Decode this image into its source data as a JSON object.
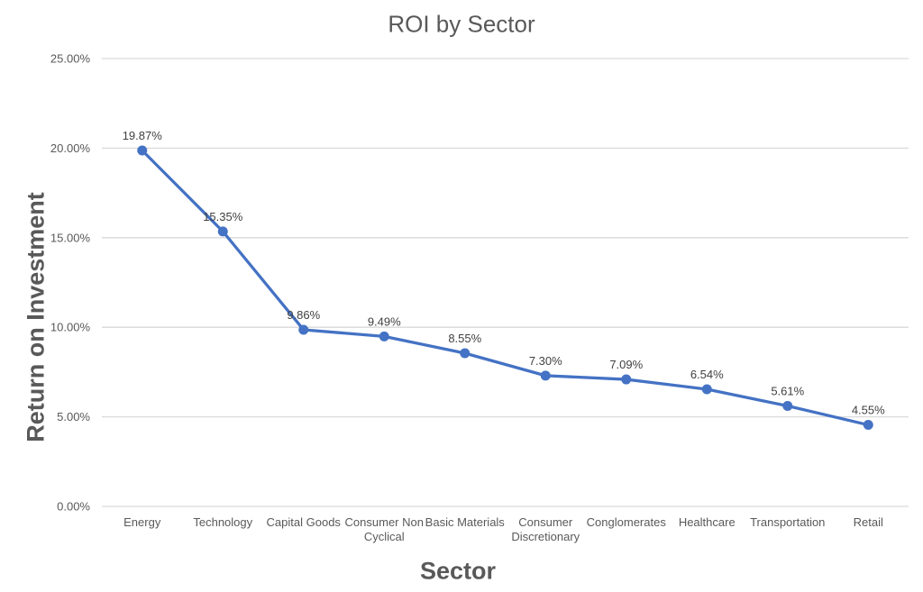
{
  "title": "ROI by Sector",
  "colors": {
    "line": "#4472C4",
    "marker": "#4472C4",
    "gridline": "#D9D9D9",
    "axis_line": "#D9D9D9",
    "tick_label": "#595959",
    "data_label": "#404040",
    "title_text": "#595959",
    "background": "#FFFFFF"
  },
  "chart_data": {
    "type": "line",
    "title": "ROI by Sector",
    "xlabel": "Sector",
    "ylabel": "Return on Investment",
    "categories": [
      "Energy",
      "Technology",
      "Capital Goods",
      "Consumer Non Cyclical",
      "Basic Materials",
      "Consumer Discretionary",
      "Conglomerates",
      "Healthcare",
      "Transportation",
      "Retail"
    ],
    "values": [
      19.87,
      15.35,
      9.86,
      9.49,
      8.55,
      7.3,
      7.09,
      6.54,
      5.61,
      4.55
    ],
    "data_labels": [
      "19.87%",
      "15.35%",
      "9.86%",
      "9.49%",
      "8.55%",
      "7.30%",
      "7.09%",
      "6.54%",
      "5.61%",
      "4.55%"
    ],
    "yticks": [
      "0.00%",
      "5.00%",
      "10.00%",
      "15.00%",
      "20.00%",
      "25.00%"
    ],
    "ylim": [
      0,
      25
    ],
    "grid": true,
    "legend": false,
    "marker": "circle",
    "data_label_position": "above"
  }
}
